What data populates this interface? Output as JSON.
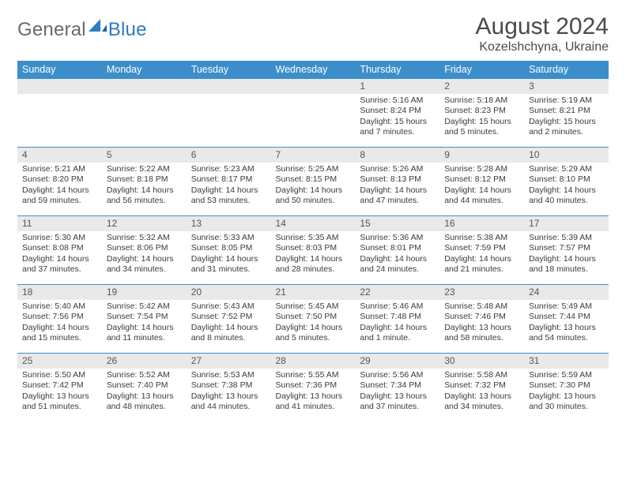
{
  "logo": {
    "word1": "General",
    "word2": "Blue"
  },
  "header": {
    "title": "August 2024",
    "location": "Kozelshchyna, Ukraine"
  },
  "colors": {
    "header_bg": "#3c8ecb",
    "header_text": "#ffffff",
    "row_divider": "#3c8ecb",
    "daynum_bg": "#e9e9e9",
    "body_text": "#3b3b3b",
    "logo_gray": "#6a6a6a",
    "logo_blue": "#2f7ac0"
  },
  "weekdays": [
    "Sunday",
    "Monday",
    "Tuesday",
    "Wednesday",
    "Thursday",
    "Friday",
    "Saturday"
  ],
  "weeks": [
    [
      null,
      null,
      null,
      null,
      {
        "n": "1",
        "sunrise": "5:16 AM",
        "sunset": "8:24 PM",
        "daylight": "15 hours and 7 minutes."
      },
      {
        "n": "2",
        "sunrise": "5:18 AM",
        "sunset": "8:23 PM",
        "daylight": "15 hours and 5 minutes."
      },
      {
        "n": "3",
        "sunrise": "5:19 AM",
        "sunset": "8:21 PM",
        "daylight": "15 hours and 2 minutes."
      }
    ],
    [
      {
        "n": "4",
        "sunrise": "5:21 AM",
        "sunset": "8:20 PM",
        "daylight": "14 hours and 59 minutes."
      },
      {
        "n": "5",
        "sunrise": "5:22 AM",
        "sunset": "8:18 PM",
        "daylight": "14 hours and 56 minutes."
      },
      {
        "n": "6",
        "sunrise": "5:23 AM",
        "sunset": "8:17 PM",
        "daylight": "14 hours and 53 minutes."
      },
      {
        "n": "7",
        "sunrise": "5:25 AM",
        "sunset": "8:15 PM",
        "daylight": "14 hours and 50 minutes."
      },
      {
        "n": "8",
        "sunrise": "5:26 AM",
        "sunset": "8:13 PM",
        "daylight": "14 hours and 47 minutes."
      },
      {
        "n": "9",
        "sunrise": "5:28 AM",
        "sunset": "8:12 PM",
        "daylight": "14 hours and 44 minutes."
      },
      {
        "n": "10",
        "sunrise": "5:29 AM",
        "sunset": "8:10 PM",
        "daylight": "14 hours and 40 minutes."
      }
    ],
    [
      {
        "n": "11",
        "sunrise": "5:30 AM",
        "sunset": "8:08 PM",
        "daylight": "14 hours and 37 minutes."
      },
      {
        "n": "12",
        "sunrise": "5:32 AM",
        "sunset": "8:06 PM",
        "daylight": "14 hours and 34 minutes."
      },
      {
        "n": "13",
        "sunrise": "5:33 AM",
        "sunset": "8:05 PM",
        "daylight": "14 hours and 31 minutes."
      },
      {
        "n": "14",
        "sunrise": "5:35 AM",
        "sunset": "8:03 PM",
        "daylight": "14 hours and 28 minutes."
      },
      {
        "n": "15",
        "sunrise": "5:36 AM",
        "sunset": "8:01 PM",
        "daylight": "14 hours and 24 minutes."
      },
      {
        "n": "16",
        "sunrise": "5:38 AM",
        "sunset": "7:59 PM",
        "daylight": "14 hours and 21 minutes."
      },
      {
        "n": "17",
        "sunrise": "5:39 AM",
        "sunset": "7:57 PM",
        "daylight": "14 hours and 18 minutes."
      }
    ],
    [
      {
        "n": "18",
        "sunrise": "5:40 AM",
        "sunset": "7:56 PM",
        "daylight": "14 hours and 15 minutes."
      },
      {
        "n": "19",
        "sunrise": "5:42 AM",
        "sunset": "7:54 PM",
        "daylight": "14 hours and 11 minutes."
      },
      {
        "n": "20",
        "sunrise": "5:43 AM",
        "sunset": "7:52 PM",
        "daylight": "14 hours and 8 minutes."
      },
      {
        "n": "21",
        "sunrise": "5:45 AM",
        "sunset": "7:50 PM",
        "daylight": "14 hours and 5 minutes."
      },
      {
        "n": "22",
        "sunrise": "5:46 AM",
        "sunset": "7:48 PM",
        "daylight": "14 hours and 1 minute."
      },
      {
        "n": "23",
        "sunrise": "5:48 AM",
        "sunset": "7:46 PM",
        "daylight": "13 hours and 58 minutes."
      },
      {
        "n": "24",
        "sunrise": "5:49 AM",
        "sunset": "7:44 PM",
        "daylight": "13 hours and 54 minutes."
      }
    ],
    [
      {
        "n": "25",
        "sunrise": "5:50 AM",
        "sunset": "7:42 PM",
        "daylight": "13 hours and 51 minutes."
      },
      {
        "n": "26",
        "sunrise": "5:52 AM",
        "sunset": "7:40 PM",
        "daylight": "13 hours and 48 minutes."
      },
      {
        "n": "27",
        "sunrise": "5:53 AM",
        "sunset": "7:38 PM",
        "daylight": "13 hours and 44 minutes."
      },
      {
        "n": "28",
        "sunrise": "5:55 AM",
        "sunset": "7:36 PM",
        "daylight": "13 hours and 41 minutes."
      },
      {
        "n": "29",
        "sunrise": "5:56 AM",
        "sunset": "7:34 PM",
        "daylight": "13 hours and 37 minutes."
      },
      {
        "n": "30",
        "sunrise": "5:58 AM",
        "sunset": "7:32 PM",
        "daylight": "13 hours and 34 minutes."
      },
      {
        "n": "31",
        "sunrise": "5:59 AM",
        "sunset": "7:30 PM",
        "daylight": "13 hours and 30 minutes."
      }
    ]
  ],
  "labels": {
    "sunrise": "Sunrise: ",
    "sunset": "Sunset: ",
    "daylight": "Daylight: "
  }
}
